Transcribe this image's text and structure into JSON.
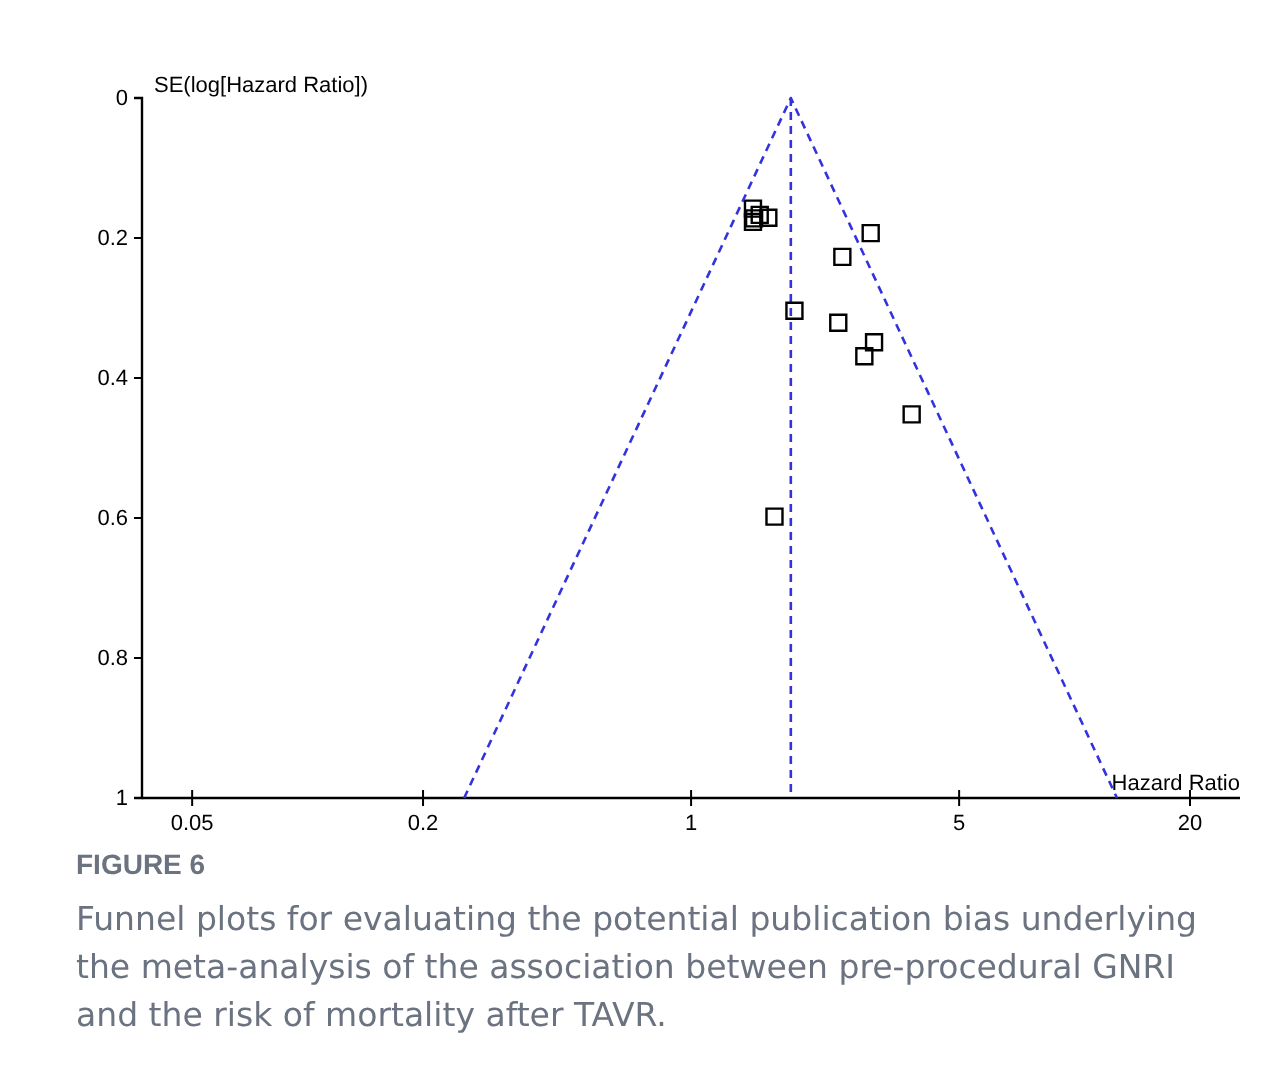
{
  "chart_data": {
    "type": "scatter",
    "xlabel": "Hazard Ratio",
    "ylabel": "SE(log[Hazard Ratio])",
    "annotations": [
      "FIGURE 6",
      "Funnel plots for evaluating the potential publication bias underlying the meta-analysis of the association between pre-procedural GNRI and the risk of mortality after TAVR."
    ],
    "log": "x",
    "xlim": [
      0.037,
      27
    ],
    "xticks": [
      0.05,
      0.2,
      1,
      5,
      20
    ],
    "ylim": [
      1,
      0
    ],
    "yticks": [
      0,
      0.2,
      0.4,
      0.6,
      0.8,
      1
    ],
    "grid": false,
    "series": [
      {
        "color": "#000000",
        "marker": "square",
        "x": [
          1.45,
          1.46,
          1.51,
          1.59,
          1.45,
          2.94,
          2.48,
          1.86,
          2.42,
          3.0,
          2.83,
          3.76,
          1.65
        ],
        "values": [
          0.158,
          0.172,
          0.167,
          0.171,
          0.177,
          0.193,
          0.227,
          0.304,
          0.321,
          0.349,
          0.369,
          0.452,
          0.598
        ]
      },
      {
        "type": "line",
        "color": "#3333dd",
        "marker": "none",
        "line_style": "dashed",
        "x": [
          0.256,
          1.82,
          12.9
        ],
        "values": [
          1,
          0,
          1
        ]
      }
    ],
    "ref_lines": [
      {
        "axis": "x",
        "value": 1.82,
        "color": "#3333dd",
        "line_style": "dashed"
      }
    ]
  }
}
